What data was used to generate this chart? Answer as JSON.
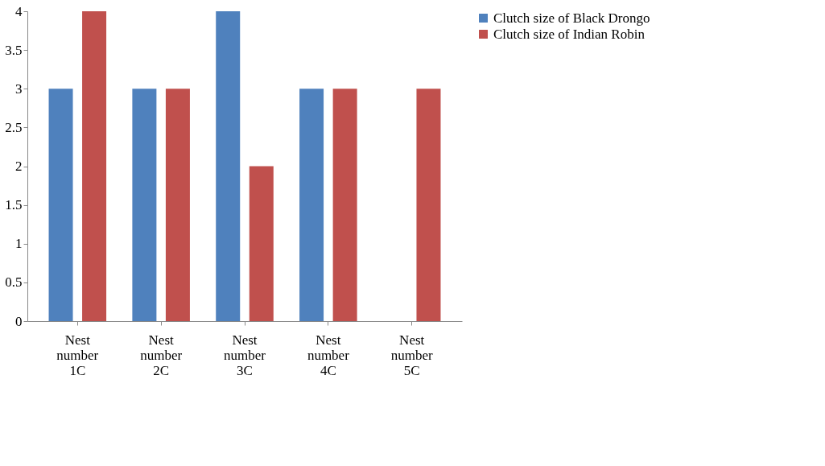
{
  "chart_data": {
    "type": "bar",
    "categories": [
      "Nest number 1C",
      "Nest number 2C",
      "Nest number 3C",
      "Nest number 4C",
      "Nest number 5C"
    ],
    "series": [
      {
        "name": "Clutch size of Black Drongo",
        "color": "#4f81bd",
        "values": [
          3,
          3,
          4,
          3,
          0
        ]
      },
      {
        "name": "Clutch size of Indian Robin",
        "color": "#c0504d",
        "values": [
          4,
          3,
          2,
          3,
          3
        ]
      }
    ],
    "ylim": [
      0,
      4
    ],
    "yticks": [
      0,
      0.5,
      1,
      1.5,
      2,
      2.5,
      3,
      3.5,
      4
    ],
    "grid": false,
    "legend": "right"
  }
}
